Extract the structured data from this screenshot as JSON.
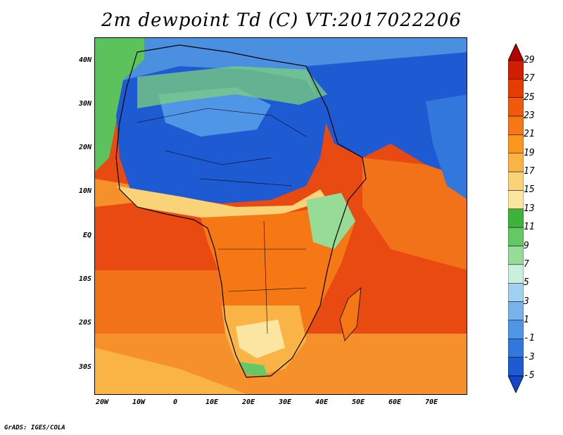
{
  "title": "2m dewpoint Td (C) VT:2017022206",
  "footer": "GrADS: IGES/COLA",
  "lat_ticks": [
    "40N",
    "30N",
    "20N",
    "10N",
    "EQ",
    "10S",
    "20S",
    "30S"
  ],
  "lon_ticks": [
    "20W",
    "10W",
    "0",
    "10E",
    "20E",
    "30E",
    "40E",
    "50E",
    "60E",
    "70E"
  ],
  "colorbar": {
    "labels": [
      "29",
      "27",
      "25",
      "23",
      "21",
      "19",
      "17",
      "15",
      "13",
      "11",
      "9",
      "7",
      "5",
      "3",
      "1",
      "-1",
      "-3",
      "-5"
    ],
    "colors": [
      "#b40000",
      "#d21e00",
      "#e63c00",
      "#f05a0a",
      "#f57814",
      "#fa961e",
      "#fab446",
      "#fad278",
      "#fae6a0",
      "#3cb43c",
      "#64c864",
      "#96dc96",
      "#c8f0dc",
      "#a0d2f0",
      "#78b4eb",
      "#5096e6",
      "#3278dc",
      "#1e5ad2",
      "#1446c8"
    ]
  },
  "map": {
    "region": "Africa and Middle East",
    "variable": "2m dewpoint",
    "units": "C"
  }
}
